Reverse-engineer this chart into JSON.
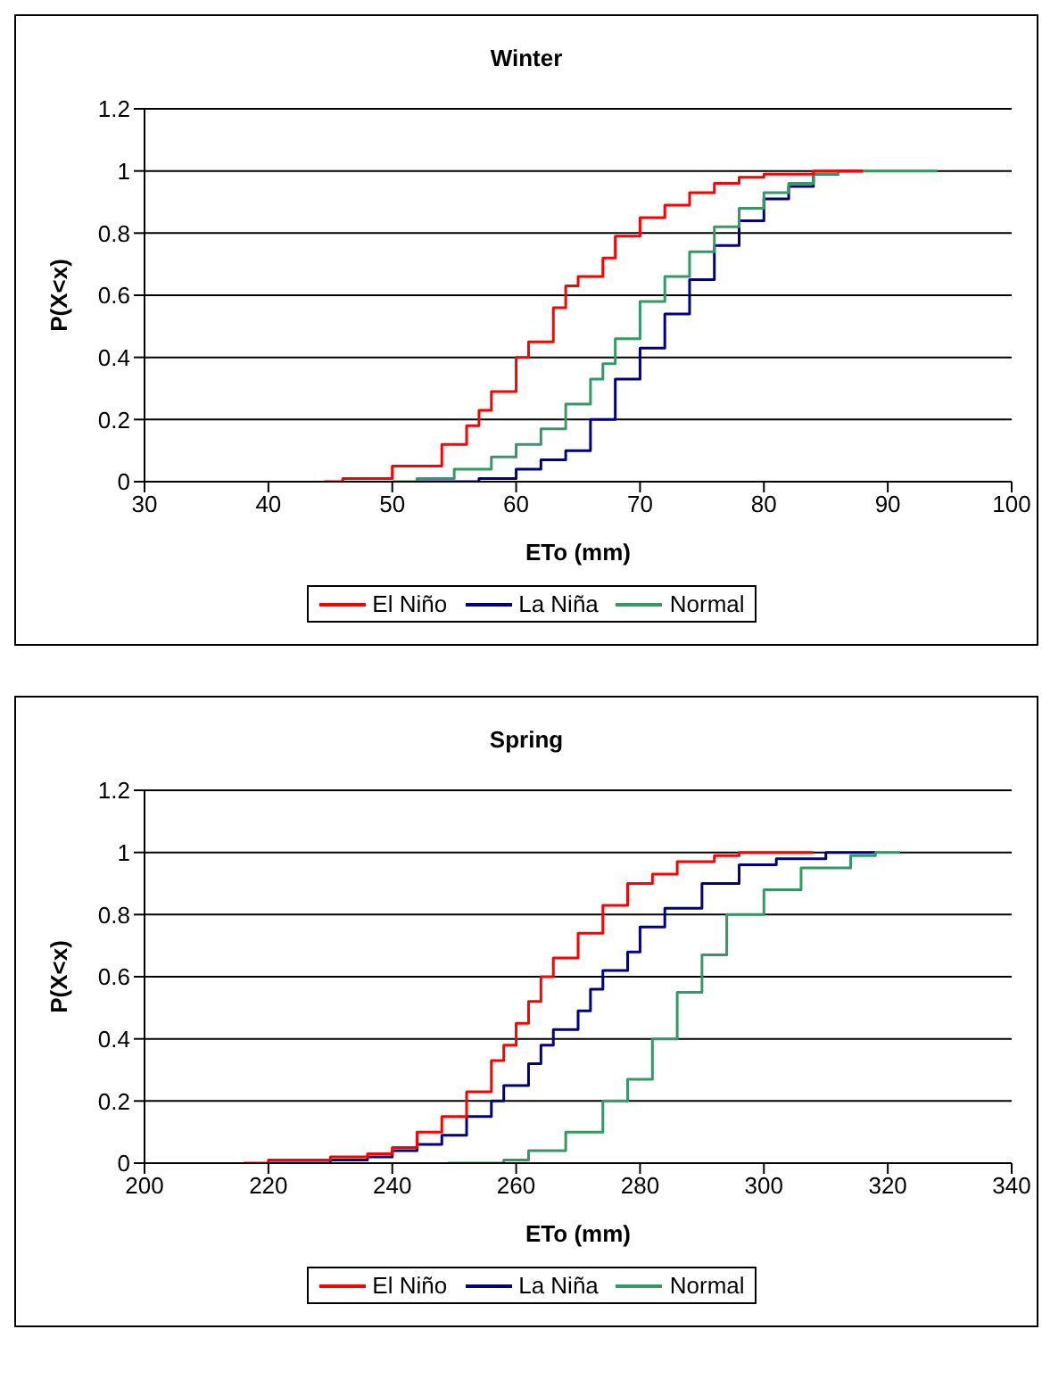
{
  "chart_data": [
    {
      "type": "step",
      "title": "Winter",
      "xlabel": "ETo (mm)",
      "ylabel": "P(X<x)",
      "xlim": [
        30,
        100
      ],
      "xticks": [
        30,
        40,
        50,
        60,
        70,
        80,
        90,
        100
      ],
      "ylim": [
        0,
        1.2
      ],
      "yticks": [
        0,
        0.2,
        0.4,
        0.6,
        0.8,
        1,
        1.2
      ],
      "grid": "y",
      "legend": "bottom",
      "series": [
        {
          "name": "La Niña",
          "color": "#000080",
          "x": [
            52,
            57,
            60,
            62,
            64,
            66,
            68,
            70,
            72,
            74,
            76,
            78,
            80,
            82,
            84,
            86,
            88
          ],
          "values": [
            0,
            0.01,
            0.04,
            0.07,
            0.1,
            0.2,
            0.33,
            0.43,
            0.54,
            0.65,
            0.76,
            0.84,
            0.91,
            0.95,
            0.99,
            1,
            1
          ]
        },
        {
          "name": "Normal",
          "color": "#339966",
          "x": [
            50,
            52,
            55,
            58,
            60,
            62,
            64,
            66,
            67,
            68,
            70,
            72,
            74,
            76,
            78,
            80,
            82,
            84,
            86,
            94
          ],
          "values": [
            0,
            0.01,
            0.04,
            0.08,
            0.12,
            0.17,
            0.25,
            0.33,
            0.38,
            0.46,
            0.58,
            0.66,
            0.74,
            0.82,
            0.88,
            0.93,
            0.96,
            0.99,
            1,
            1
          ]
        },
        {
          "name": "El Niño",
          "color": "#ff0000",
          "x": [
            44.5,
            46,
            50,
            54,
            56,
            57,
            58,
            60,
            61,
            63,
            64,
            65,
            67,
            68,
            70,
            72,
            74,
            76,
            78,
            80,
            84,
            88
          ],
          "values": [
            0,
            0.01,
            0.05,
            0.12,
            0.18,
            0.23,
            0.29,
            0.4,
            0.45,
            0.56,
            0.63,
            0.66,
            0.72,
            0.79,
            0.85,
            0.89,
            0.93,
            0.96,
            0.98,
            0.99,
            1,
            1
          ]
        }
      ]
    },
    {
      "type": "step",
      "title": "Spring",
      "xlabel": "ETo (mm)",
      "ylabel": "P(X<x)",
      "xlim": [
        200,
        340
      ],
      "xticks": [
        200,
        220,
        240,
        260,
        280,
        300,
        320,
        340
      ],
      "ylim": [
        0,
        1.2
      ],
      "yticks": [
        0,
        0.2,
        0.4,
        0.6,
        0.8,
        1,
        1.2
      ],
      "grid": "y",
      "legend": "bottom",
      "series": [
        {
          "name": "La Niña",
          "color": "#000080",
          "x": [
            220,
            230,
            236,
            240,
            244,
            248,
            252,
            256,
            258,
            262,
            264,
            266,
            270,
            272,
            274,
            278,
            280,
            284,
            290,
            296,
            302,
            310,
            318
          ],
          "values": [
            0,
            0.01,
            0.02,
            0.04,
            0.06,
            0.09,
            0.15,
            0.2,
            0.25,
            0.32,
            0.38,
            0.43,
            0.49,
            0.56,
            0.62,
            0.68,
            0.76,
            0.82,
            0.9,
            0.96,
            0.98,
            1,
            1
          ]
        },
        {
          "name": "Normal",
          "color": "#339966",
          "x": [
            249,
            258,
            262,
            268,
            274,
            278,
            282,
            286,
            290,
            294,
            300,
            306,
            314,
            318,
            322
          ],
          "values": [
            0,
            0.01,
            0.04,
            0.1,
            0.2,
            0.27,
            0.4,
            0.55,
            0.67,
            0.8,
            0.88,
            0.95,
            0.99,
            1,
            1
          ]
        },
        {
          "name": "El Niño",
          "color": "#ff0000",
          "x": [
            216,
            220,
            230,
            236,
            240,
            244,
            248,
            252,
            256,
            258,
            260,
            262,
            264,
            266,
            270,
            274,
            278,
            282,
            286,
            292,
            296,
            308
          ],
          "values": [
            0,
            0.01,
            0.02,
            0.03,
            0.05,
            0.1,
            0.15,
            0.23,
            0.33,
            0.38,
            0.45,
            0.52,
            0.6,
            0.66,
            0.74,
            0.83,
            0.9,
            0.93,
            0.97,
            0.99,
            1,
            1
          ]
        }
      ]
    }
  ]
}
